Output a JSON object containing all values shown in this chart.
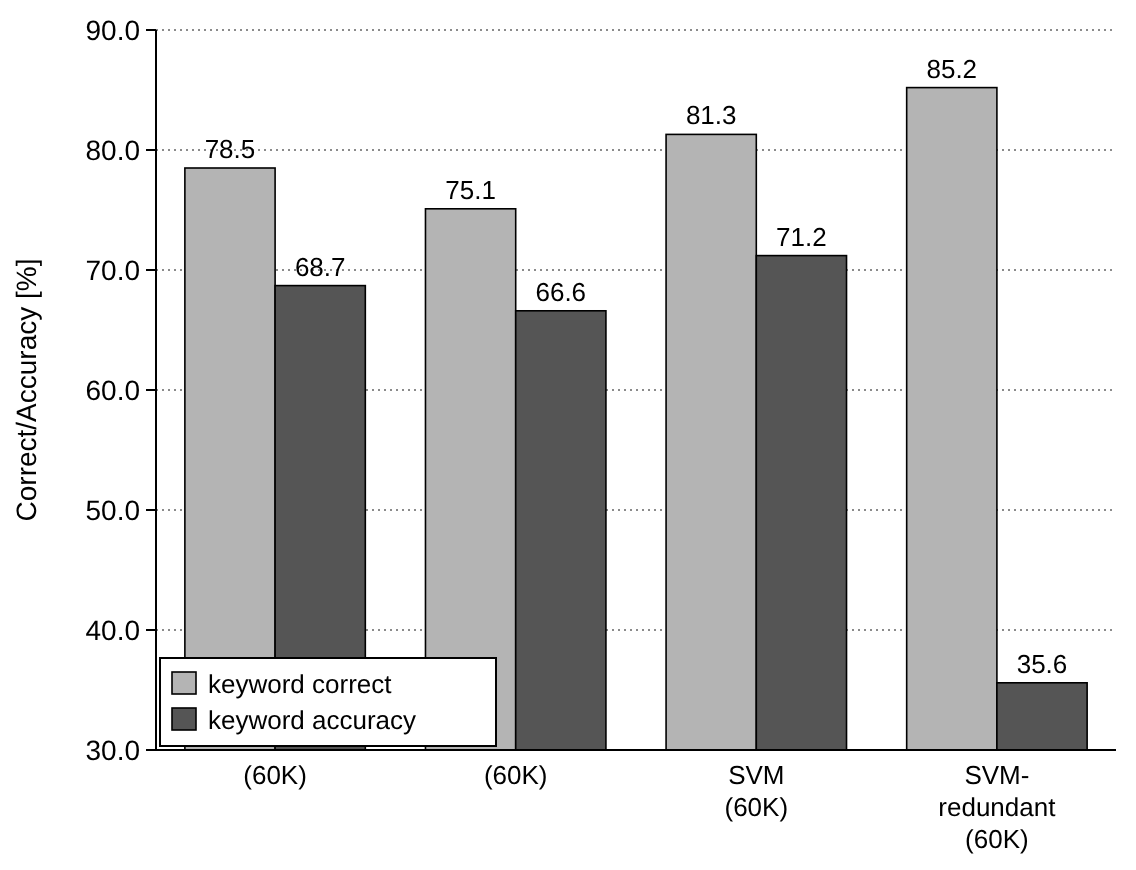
{
  "chart_data": {
    "type": "bar",
    "ylabel": "Correct/Accuracy [%]",
    "categories": [
      "(60K)",
      "(60K)",
      "SVM\n(60K)",
      "SVM-\nredundant\n(60K)"
    ],
    "series": [
      {
        "name": "keyword correct",
        "color": "#b4b4b4",
        "values": [
          78.5,
          75.1,
          81.3,
          85.2
        ]
      },
      {
        "name": "keyword accuracy",
        "color": "#555555",
        "values": [
          68.7,
          66.6,
          71.2,
          35.6
        ]
      }
    ],
    "ylim": [
      30,
      90
    ],
    "yticks": [
      {
        "value": 30,
        "label": "30.0"
      },
      {
        "value": 40,
        "label": "40.0"
      },
      {
        "value": 50,
        "label": "50.0"
      },
      {
        "value": 60,
        "label": "60.0"
      },
      {
        "value": 70,
        "label": "70.0"
      },
      {
        "value": 80,
        "label": "80.0"
      },
      {
        "value": 90,
        "label": "90.0"
      }
    ],
    "grid": "y",
    "legend": "bottom left",
    "data_labels": true
  }
}
